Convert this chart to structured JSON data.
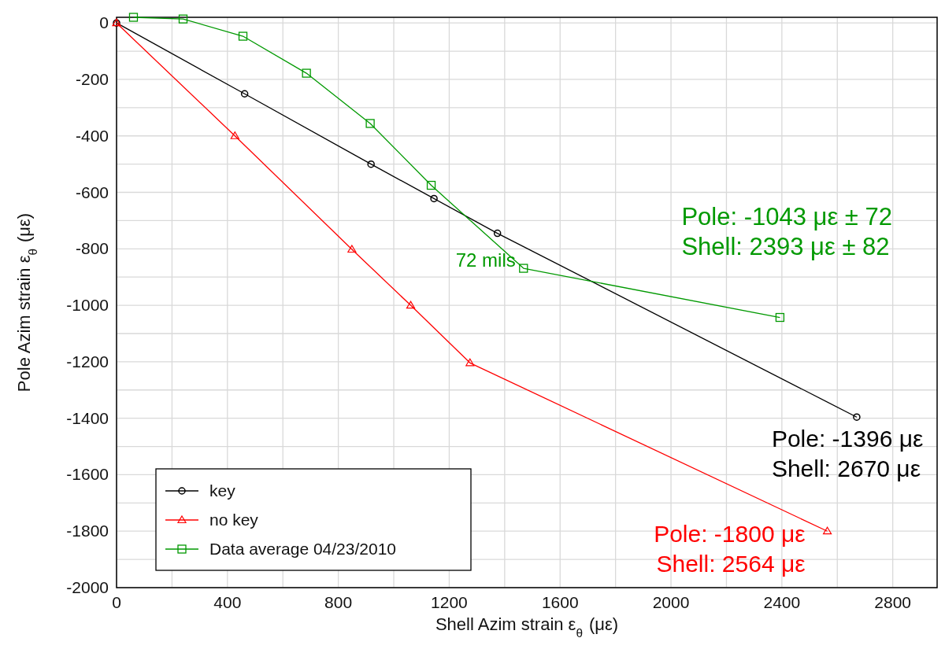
{
  "chart_data": {
    "type": "line",
    "xlabel": "Shell Azim strain ε$_{θ}$ (με)",
    "ylabel": "Pole Azim strain ε$_{θ}$ (με)",
    "xlim": [
      0,
      2960
    ],
    "ylim": [
      -2000,
      20
    ],
    "xticks": [
      0,
      {
        "value": 200,
        "label": null
      },
      400,
      {
        "value": 600,
        "label": null
      },
      800,
      {
        "value": 1000,
        "label": null
      },
      1200,
      {
        "value": 1400,
        "label": null
      },
      1600,
      {
        "value": 1800,
        "label": null
      },
      2000,
      {
        "value": 2200,
        "label": null
      },
      2400,
      {
        "value": 2600,
        "label": null
      },
      2800
    ],
    "yticks": [
      0,
      {
        "value": -100,
        "label": null
      },
      -200,
      {
        "value": -300,
        "label": null
      },
      -400,
      {
        "value": -500,
        "label": null
      },
      -600,
      {
        "value": -700,
        "label": null
      },
      -800,
      {
        "value": -900,
        "label": null
      },
      -1000,
      {
        "value": -1100,
        "label": null
      },
      -1200,
      {
        "value": -1300,
        "label": null
      },
      -1400,
      {
        "value": -1500,
        "label": null
      },
      -1600,
      {
        "value": -1700,
        "label": null
      },
      -1800,
      {
        "value": -1900,
        "label": null
      },
      -2000
    ],
    "grid": true,
    "legend": "bottom left",
    "series": [
      {
        "name": "key",
        "color": "#000000",
        "marker": "circle",
        "x": [
          0,
          462,
          918,
          1145,
          1374,
          2670
        ],
        "values": [
          0,
          -251,
          -500,
          -622,
          -745,
          -1396
        ]
      },
      {
        "name": "no key",
        "color": "#ff0000",
        "marker": "triangle",
        "x": [
          0,
          427,
          849,
          1061,
          1275,
          2564
        ],
        "values": [
          0,
          -400,
          -802,
          -1000,
          -1204,
          -1800
        ]
      },
      {
        "name": "Data average 04/23/2010",
        "color": "#009900",
        "marker": "square",
        "x": [
          61,
          240,
          456,
          685,
          915,
          1135,
          1468,
          2393
        ],
        "values": [
          20,
          14,
          -47,
          -178,
          -356,
          -575,
          -869,
          -1043
        ]
      }
    ],
    "annotations": [
      {
        "text": "72 mils",
        "x": 1468,
        "y": -869
      },
      {
        "text": "Pole: -1043 με ± 72\nShell: 2393 με ± 82",
        "x": 2393,
        "y": -1043
      },
      {
        "text": "Pole: -1396 με\nShell: 2670 με",
        "x": 2670,
        "y": -1396
      },
      {
        "text": "Pole: -1800 με\nShell: 2564 με",
        "x": 2564,
        "y": -1800
      }
    ]
  }
}
